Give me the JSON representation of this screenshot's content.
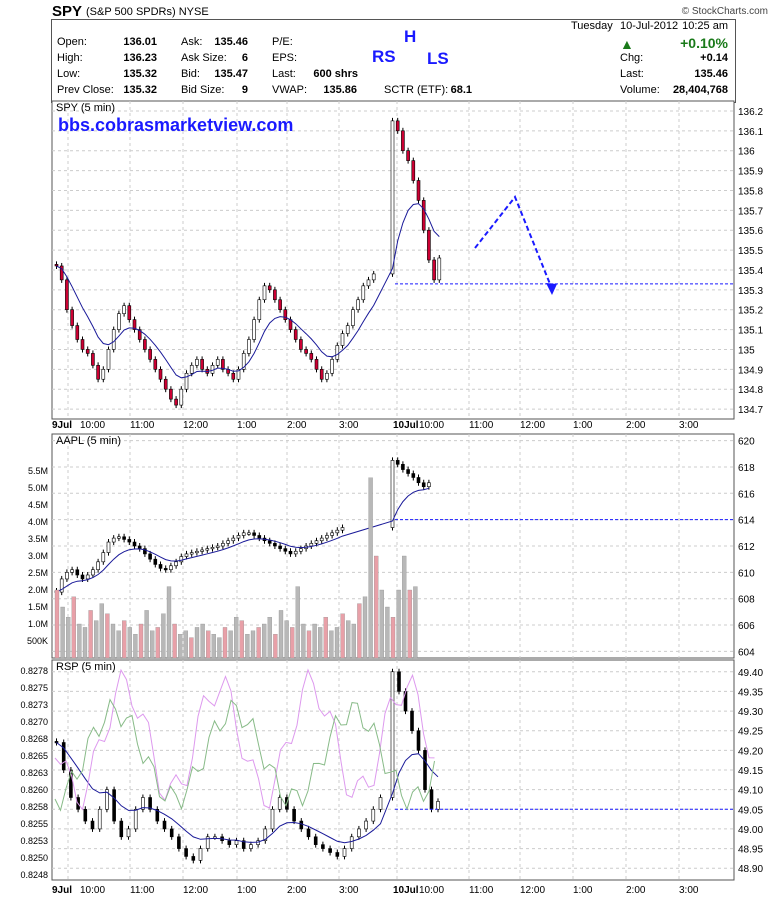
{
  "header": {
    "symbol": "SPY",
    "name": "(S&P 500 SPDRs)",
    "exchange": "NYSE",
    "brand": "© StockCharts.com"
  },
  "quote": {
    "left": [
      {
        "label": "Open:",
        "value": "136.01"
      },
      {
        "label": "High:",
        "value": "136.23"
      },
      {
        "label": "Low:",
        "value": "135.32"
      },
      {
        "label": "Prev Close:",
        "value": "135.32"
      }
    ],
    "mid": [
      {
        "label": "Ask:",
        "value": "135.46"
      },
      {
        "label": "Ask Size:",
        "value": "6"
      },
      {
        "label": "Bid:",
        "value": "135.47"
      },
      {
        "label": "Bid Size:",
        "value": "9"
      }
    ],
    "right_labels": [
      "P/E:",
      "EPS:",
      "Last:",
      "VWAP:"
    ],
    "last_value": "600 shrs",
    "vwap_value": "135.86",
    "sctr_label": "SCTR (ETF):",
    "sctr_value": "68.1",
    "date": "Tuesday",
    "date2": "10-Jul-2012",
    "time": "10:25 am",
    "change_pct": "+0.10%",
    "chg_label": "Chg:",
    "chg_value": "+0.14",
    "last_label": "Last:",
    "last_price": "135.46",
    "volume_label": "Volume:",
    "volume_value": "28,404,768"
  },
  "annotations": {
    "rs": "RS",
    "h": "H",
    "ls": "LS",
    "website": "bbs.cobrasmarketview.com"
  },
  "colors": {
    "down_candle": "#cc0033",
    "up_candle": "#ffffff",
    "ma_line": "#1a1a99",
    "arrow": "#1a1aff",
    "volume_up": "#b8b8b8",
    "volume_down": "#e8a0a8",
    "rsp_pink": "#dd99ee",
    "rsp_green": "#88bb88"
  },
  "chart_data": [
    {
      "type": "candlestick",
      "title": "SPY (5 min)",
      "y_ticks": [
        134.7,
        134.8,
        134.9,
        135.0,
        135.1,
        135.2,
        135.3,
        135.4,
        135.5,
        135.6,
        135.7,
        135.8,
        135.9,
        136.0,
        136.1,
        136.2
      ],
      "ylim": [
        134.65,
        136.25
      ],
      "x_labels": [
        "9Jul",
        "10:00",
        "11:00",
        "12:00",
        "1:00",
        "2:00",
        "3:00",
        "10Jul",
        "10:00",
        "11:00",
        "12:00",
        "1:00",
        "2:00",
        "3:00"
      ],
      "close": [
        135.42,
        135.35,
        135.2,
        135.12,
        135.05,
        135.0,
        134.98,
        134.92,
        134.85,
        134.9,
        135.0,
        135.1,
        135.18,
        135.22,
        135.15,
        135.1,
        135.05,
        135.0,
        134.95,
        134.9,
        134.85,
        134.8,
        134.75,
        134.72,
        134.8,
        134.88,
        134.92,
        134.95,
        134.9,
        134.88,
        134.92,
        134.95,
        134.9,
        134.88,
        134.85,
        134.9,
        134.98,
        135.05,
        135.15,
        135.25,
        135.32,
        135.3,
        135.25,
        135.2,
        135.15,
        135.1,
        135.05,
        135.0,
        134.98,
        134.95,
        134.9,
        134.85,
        134.88,
        134.95,
        135.02,
        135.08,
        135.12,
        135.2,
        135.25,
        135.32,
        135.35,
        135.38,
        136.15,
        136.1,
        136.0,
        135.95,
        135.85,
        135.75,
        135.6,
        135.45,
        135.35,
        135.46
      ],
      "ma_last": 135.52,
      "reference_level": 135.33
    },
    {
      "type": "candlestick",
      "title": "AAPL (5 min)",
      "y_ticks": [
        604,
        606,
        608,
        610,
        612,
        614,
        616,
        618,
        620
      ],
      "ylim": [
        603.5,
        620.5
      ],
      "volume_ticks": [
        "5.5M",
        "5.0M",
        "4.5M",
        "4.0M",
        "3.5M",
        "3.0M",
        "2.5M",
        "2.0M",
        "1.5M",
        "1.0M",
        "500K"
      ],
      "close": [
        608.5,
        609.5,
        610,
        610.2,
        609.8,
        609.5,
        609.8,
        610.2,
        610.8,
        611.5,
        612.3,
        612.6,
        612.7,
        612.5,
        612.3,
        612.0,
        611.8,
        611.4,
        611.0,
        610.6,
        610.3,
        610.2,
        610.5,
        610.8,
        611.2,
        611.4,
        611.5,
        611.6,
        611.7,
        611.8,
        611.9,
        612.0,
        612.2,
        612.4,
        612.6,
        612.8,
        613.0,
        613.0,
        612.8,
        612.6,
        612.4,
        612.2,
        612.0,
        611.8,
        611.6,
        611.4,
        611.6,
        611.8,
        612.0,
        612.2,
        612.4,
        612.6,
        612.8,
        613.0,
        613.2,
        613.4,
        618.5,
        618.2,
        617.8,
        617.5,
        617.2,
        616.8,
        616.5,
        616.8
      ],
      "reference_level": 614.0
    },
    {
      "type": "candlestick",
      "title": "RSP (5 min)",
      "y_ticks_left": [
        "0.8278",
        "0.8275",
        "0.8273",
        "0.8270",
        "0.8268",
        "0.8265",
        "0.8263",
        "0.8260",
        "0.8258",
        "0.8255",
        "0.8253",
        "0.8250",
        "0.8248"
      ],
      "y_ticks_right": [
        48.9,
        48.95,
        49.0,
        49.05,
        49.1,
        49.15,
        49.2,
        49.25,
        49.3,
        49.35,
        49.4
      ],
      "ylim": [
        48.87,
        49.43
      ],
      "close": [
        49.22,
        49.15,
        49.08,
        49.05,
        49.02,
        49.0,
        49.05,
        49.1,
        49.02,
        48.98,
        49.0,
        49.05,
        49.08,
        49.05,
        49.02,
        49.0,
        48.98,
        48.95,
        48.93,
        48.92,
        48.95,
        48.98,
        48.98,
        48.97,
        48.96,
        48.97,
        48.95,
        48.96,
        48.97,
        49.0,
        49.05,
        49.08,
        49.05,
        49.02,
        49.0,
        48.98,
        48.96,
        48.95,
        48.94,
        48.93,
        48.95,
        48.98,
        49.0,
        49.02,
        49.05,
        49.08,
        49.4,
        49.35,
        49.3,
        49.25,
        49.2,
        49.1,
        49.05,
        49.07
      ],
      "reference_level": 49.05
    }
  ]
}
